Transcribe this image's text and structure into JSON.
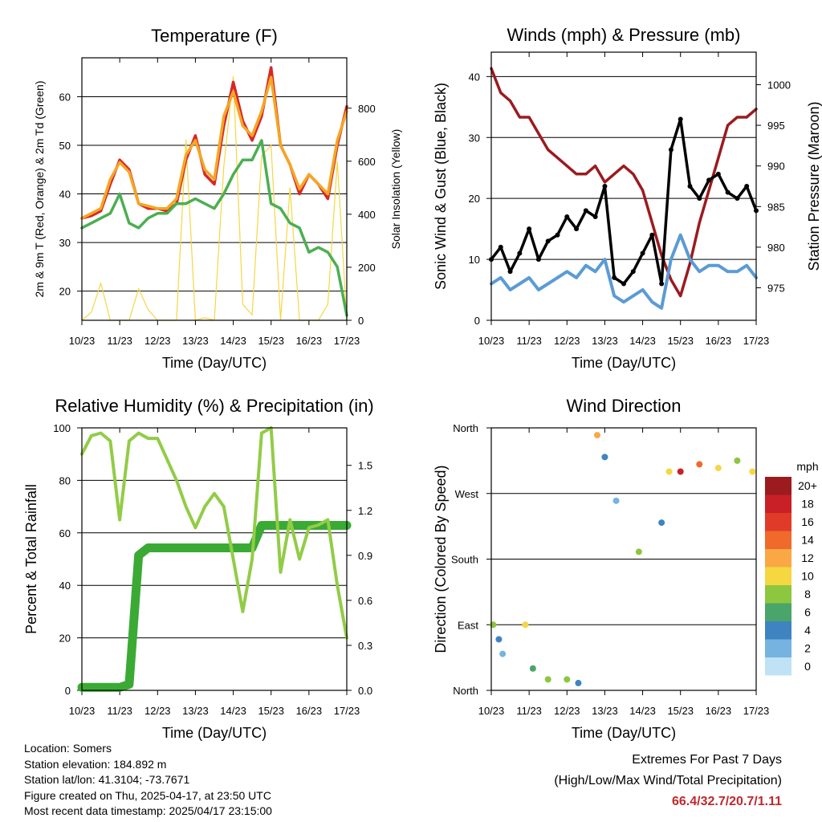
{
  "chart_data": [
    {
      "type": "line",
      "title": "Temperature (F)",
      "xlabel": "Time (Day/UTC)",
      "ylabel": "2m & 9m T (Red, Orange) & 2m Td (Green)",
      "ylabel_right": "Solar Insolation (Yellow)",
      "x_tick_labels": [
        "10/23",
        "11/23",
        "12/23",
        "13/23",
        "14/23",
        "15/23",
        "16/23",
        "17/23"
      ],
      "ylim": [
        14,
        68
      ],
      "yticks": [
        20,
        30,
        40,
        50,
        60
      ],
      "ylim_right": [
        0,
        990
      ],
      "yticks_right": [
        0,
        200,
        400,
        600,
        800
      ],
      "x": [
        0,
        0.25,
        0.5,
        0.75,
        1.0,
        1.25,
        1.5,
        1.75,
        2.0,
        2.25,
        2.5,
        2.75,
        3.0,
        3.25,
        3.5,
        3.75,
        4.0,
        4.25,
        4.5,
        4.75,
        5.0,
        5.25,
        5.5,
        5.75,
        6.0,
        6.25,
        6.5,
        6.75,
        7.0
      ],
      "series": [
        {
          "name": "2m T",
          "color": "#d62728",
          "values": [
            35,
            35.5,
            36.5,
            42,
            47,
            45,
            38,
            37,
            37,
            36.5,
            38,
            47,
            52,
            44,
            42,
            54,
            63,
            55,
            51,
            56,
            66,
            50,
            46,
            40,
            44,
            42,
            39,
            50,
            58
          ]
        },
        {
          "name": "9m T",
          "color": "#f5a623",
          "values": [
            35,
            36,
            37,
            43,
            46.5,
            44.5,
            38,
            37.5,
            37,
            37,
            39,
            48,
            51,
            45,
            43,
            56,
            61,
            54,
            52,
            57,
            64,
            50,
            46,
            41,
            44,
            42,
            40,
            51,
            57
          ]
        },
        {
          "name": "2m Td",
          "color": "#4caf50",
          "values": [
            33,
            34,
            35,
            36,
            40,
            34,
            33,
            35,
            36,
            36,
            38,
            38,
            39,
            38,
            37,
            40,
            44,
            47,
            47,
            51,
            38,
            37,
            34,
            33,
            28,
            29,
            28,
            25,
            15
          ]
        },
        {
          "name": "Solar Insolation",
          "color": "#f5d742",
          "axis": "right",
          "values": [
            0,
            30,
            140,
            0,
            0,
            0,
            120,
            40,
            0,
            0,
            0,
            680,
            0,
            10,
            0,
            580,
            920,
            60,
            20,
            620,
            660,
            0,
            500,
            0,
            0,
            0,
            60,
            600,
            0
          ]
        }
      ]
    },
    {
      "type": "line",
      "title": "Winds (mph) & Pressure (mb)",
      "xlabel": "Time (Day/UTC)",
      "ylabel": "Sonic Wind & Gust (Blue, Black)",
      "ylabel_right": "Station Pressure (Maroon)",
      "x_tick_labels": [
        "10/23",
        "11/23",
        "12/23",
        "13/23",
        "14/23",
        "15/23",
        "16/23",
        "17/23"
      ],
      "ylim": [
        0,
        44
      ],
      "yticks": [
        0,
        10,
        20,
        30,
        40
      ],
      "ylim_right": [
        971,
        1004
      ],
      "yticks_right": [
        975,
        980,
        985,
        990,
        995,
        1000
      ],
      "x": [
        0,
        0.25,
        0.5,
        0.75,
        1.0,
        1.25,
        1.5,
        1.75,
        2.0,
        2.25,
        2.5,
        2.75,
        3.0,
        3.25,
        3.5,
        3.75,
        4.0,
        4.25,
        4.5,
        4.75,
        5.0,
        5.25,
        5.5,
        5.75,
        6.0,
        6.25,
        6.5,
        6.75,
        7.0
      ],
      "series": [
        {
          "name": "Sonic Wind",
          "color": "#5b9bd5",
          "values": [
            6,
            7,
            5,
            6,
            7,
            5,
            6,
            7,
            8,
            7,
            9,
            8,
            10,
            4,
            3,
            4,
            5,
            3,
            2,
            10,
            14,
            10,
            8,
            9,
            9,
            8,
            8,
            9,
            7
          ]
        },
        {
          "name": "Gust",
          "color": "#000000",
          "values": [
            10,
            12,
            8,
            11,
            15,
            10,
            13,
            14,
            17,
            15,
            18,
            17,
            22,
            7,
            6,
            8,
            11,
            14,
            6,
            28,
            33,
            22,
            20,
            23,
            24,
            21,
            20,
            22,
            18
          ]
        },
        {
          "name": "Station Pressure",
          "color": "#9b1b1f",
          "axis": "right",
          "values": [
            1002,
            999,
            998,
            996,
            996,
            994,
            992,
            991,
            990,
            989,
            989,
            990,
            988,
            989,
            990,
            989,
            987,
            983,
            979,
            976,
            974,
            978,
            983,
            987,
            991,
            995,
            996,
            996,
            997
          ]
        }
      ]
    },
    {
      "type": "line",
      "title": "Relative Humidity (%) & Precipitation (in)",
      "xlabel": "Time (Day/UTC)",
      "ylabel": "Percent & Total Rainfall",
      "x_tick_labels": [
        "10/23",
        "11/23",
        "12/23",
        "13/23",
        "14/23",
        "15/23",
        "16/23",
        "17/23"
      ],
      "ylim": [
        0,
        100
      ],
      "yticks": [
        0,
        20,
        40,
        60,
        80,
        100
      ],
      "ylim_right": [
        0,
        1.75
      ],
      "yticks_right": [
        "0.0",
        "0.3",
        "0.6",
        "0.9",
        "1.2",
        "1.5"
      ],
      "x": [
        0,
        0.25,
        0.5,
        0.75,
        1.0,
        1.25,
        1.5,
        1.75,
        2.0,
        2.25,
        2.5,
        2.75,
        3.0,
        3.25,
        3.5,
        3.75,
        4.0,
        4.25,
        4.5,
        4.75,
        5.0,
        5.25,
        5.5,
        5.75,
        6.0,
        6.25,
        6.5,
        6.75,
        7.0
      ],
      "series": [
        {
          "name": "Relative Humidity",
          "color": "#92cc47",
          "values": [
            90,
            97,
            98,
            95,
            65,
            95,
            98,
            96,
            96,
            88,
            80,
            70,
            62,
            70,
            75,
            70,
            50,
            30,
            50,
            98,
            100,
            45,
            65,
            50,
            62,
            63,
            65,
            40,
            20
          ]
        },
        {
          "name": "Total Precipitation",
          "color": "#3aaa35",
          "axis": "right",
          "values": [
            0.02,
            0.02,
            0.02,
            0.02,
            0.02,
            0.04,
            0.9,
            0.95,
            0.95,
            0.95,
            0.95,
            0.95,
            0.95,
            0.95,
            0.95,
            0.95,
            0.95,
            0.95,
            0.95,
            1.1,
            1.1,
            1.1,
            1.1,
            1.1,
            1.1,
            1.1,
            1.1,
            1.1,
            1.1
          ]
        }
      ]
    },
    {
      "type": "scatter",
      "title": "Wind Direction",
      "xlabel": "Time (Day/UTC)",
      "ylabel": "Direction (Colored By Speed)",
      "x_tick_labels": [
        "10/23",
        "11/23",
        "12/23",
        "13/23",
        "14/23",
        "15/23",
        "16/23",
        "17/23"
      ],
      "y_tick_labels": [
        "North",
        "East",
        "South",
        "West",
        "North"
      ],
      "ylim": [
        0,
        360
      ],
      "colorbar": {
        "title": "mph",
        "labels": [
          "20+",
          "18",
          "16",
          "14",
          "12",
          "10",
          "8",
          "6",
          "4",
          "2",
          "0"
        ],
        "colors": [
          "#9b1b1f",
          "#c82026",
          "#e03b28",
          "#f06a2b",
          "#f9a845",
          "#f5d742",
          "#8dc63f",
          "#4aa56b",
          "#3f84c0",
          "#76b3e0",
          "#bfe3f5"
        ]
      },
      "points": [
        {
          "x": 0.05,
          "y": 90,
          "s": 8
        },
        {
          "x": 0.2,
          "y": 70,
          "s": 4
        },
        {
          "x": 0.3,
          "y": 50,
          "s": 2
        },
        {
          "x": 0.9,
          "y": 90,
          "s": 10
        },
        {
          "x": 1.1,
          "y": 30,
          "s": 6
        },
        {
          "x": 1.5,
          "y": 15,
          "s": 8
        },
        {
          "x": 2.0,
          "y": 15,
          "s": 8
        },
        {
          "x": 2.3,
          "y": 10,
          "s": 4
        },
        {
          "x": 2.8,
          "y": 350,
          "s": 12
        },
        {
          "x": 3.0,
          "y": 320,
          "s": 4
        },
        {
          "x": 3.3,
          "y": 260,
          "s": 2
        },
        {
          "x": 3.9,
          "y": 190,
          "s": 8
        },
        {
          "x": 4.5,
          "y": 230,
          "s": 4
        },
        {
          "x": 4.7,
          "y": 300,
          "s": 10
        },
        {
          "x": 5.0,
          "y": 300,
          "s": 18
        },
        {
          "x": 5.5,
          "y": 310,
          "s": 14
        },
        {
          "x": 6.0,
          "y": 305,
          "s": 10
        },
        {
          "x": 6.5,
          "y": 315,
          "s": 8
        },
        {
          "x": 6.9,
          "y": 300,
          "s": 10
        }
      ]
    }
  ],
  "info": {
    "location": "Location: Somers",
    "elevation": "Station elevation: 184.892 m",
    "latlon": "Station lat/lon: 41.3104; -73.7671",
    "created": "Figure created on Thu, 2025-04-17, at 23:50 UTC",
    "recent": "Most recent data timestamp: 2025/04/17 23:15:00"
  },
  "extremes": {
    "title": "Extremes For Past 7 Days",
    "subtitle": "(High/Low/Max Wind/Total Precipitation)",
    "values": "66.4/32.7/20.7/1.11"
  }
}
